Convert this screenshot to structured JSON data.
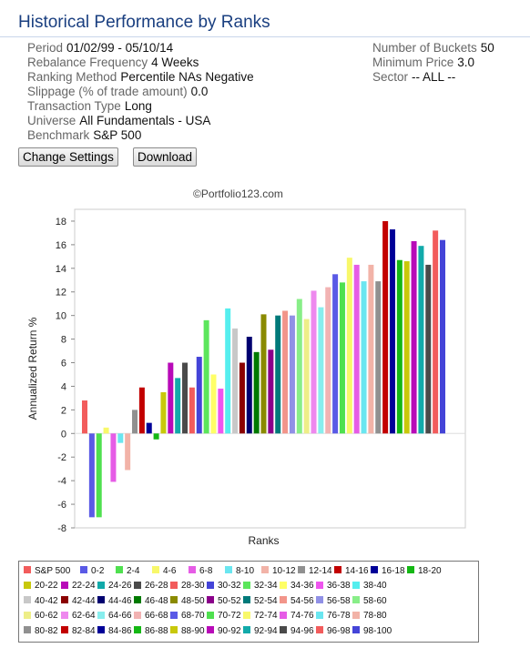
{
  "page": {
    "title": "Historical Performance by Ranks"
  },
  "params_left": [
    {
      "label": "Period",
      "value": "01/02/99 - 05/10/14"
    },
    {
      "label": "Rebalance Frequency",
      "value": "4 Weeks"
    },
    {
      "label": "Ranking Method",
      "value": "Percentile NAs Negative"
    },
    {
      "label": "Slippage (% of trade amount)",
      "value": "0.0"
    },
    {
      "label": "Transaction Type",
      "value": "Long"
    },
    {
      "label": "Universe",
      "value": "All Fundamentals - USA"
    },
    {
      "label": "Benchmark",
      "value": "S&P 500"
    }
  ],
  "params_right": [
    {
      "label": "Number of Buckets",
      "value": "50"
    },
    {
      "label": "Minimum Price",
      "value": "3.0"
    },
    {
      "label": "Sector",
      "value": "-- ALL --"
    }
  ],
  "buttons": {
    "change_settings": "Change Settings",
    "download": "Download"
  },
  "watermark": "©Portfolio123.com",
  "chart_data": {
    "type": "bar",
    "ylabel": "Annualized Return %",
    "xlabel": "Ranks",
    "ylim": [
      -8,
      19
    ],
    "yticks": [
      -8,
      -6,
      -4,
      -2,
      0,
      2,
      4,
      6,
      8,
      10,
      12,
      14,
      16,
      18
    ],
    "grid": false,
    "legend": "bottom",
    "categories": [
      "S&P 500",
      "0-2",
      "2-4",
      "4-6",
      "6-8",
      "8-10",
      "10-12",
      "12-14",
      "14-16",
      "16-18",
      "18-20",
      "20-22",
      "22-24",
      "24-26",
      "26-28",
      "28-30",
      "30-32",
      "32-34",
      "34-36",
      "36-38",
      "38-40",
      "40-42",
      "42-44",
      "44-46",
      "46-48",
      "48-50",
      "50-52",
      "52-54",
      "54-56",
      "56-58",
      "58-60",
      "60-62",
      "62-64",
      "64-66",
      "66-68",
      "68-70",
      "70-72",
      "72-74",
      "74-76",
      "76-78",
      "78-80",
      "80-82",
      "82-84",
      "84-86",
      "86-88",
      "88-90",
      "90-92",
      "92-94",
      "94-96",
      "96-98",
      "98-100"
    ],
    "values": [
      2.8,
      -7.1,
      -7.1,
      0.5,
      -4.1,
      -0.8,
      -3.1,
      2.0,
      3.9,
      0.9,
      -0.5,
      3.5,
      6.0,
      4.7,
      6.0,
      3.9,
      6.5,
      9.6,
      5.0,
      3.8,
      10.6,
      8.9,
      6.0,
      8.2,
      6.9,
      10.1,
      7.1,
      10.0,
      10.4,
      10.0,
      11.4,
      9.7,
      12.1,
      10.7,
      12.4,
      13.5,
      12.8,
      14.9,
      14.3,
      12.9,
      14.3,
      12.9,
      18.0,
      17.3,
      14.7,
      14.6,
      16.3,
      15.9,
      14.3,
      17.2,
      16.4
    ],
    "colors": [
      "#f25c5c",
      "#5a5ae6",
      "#4fe04f",
      "#f8f86a",
      "#e65ce6",
      "#6ae6f0",
      "#f2b3a8",
      "#909090",
      "#c20000",
      "#000098",
      "#14b814",
      "#c8c80a",
      "#b80ab8",
      "#12aaaa",
      "#4a4a4a",
      "#f25c5c",
      "#4444d8",
      "#5ce65c",
      "#ffff66",
      "#ee55ee",
      "#55eeee",
      "#c8c8c8",
      "#8a0000",
      "#000070",
      "#007a00",
      "#8a8a00",
      "#8a008a",
      "#007a7a",
      "#f2958a",
      "#9090e6",
      "#88ee88",
      "#eeee88",
      "#ee88ee",
      "#88eeee",
      "#f2b3b3",
      "#5a5ae6",
      "#4fe04f",
      "#f8f86a",
      "#e65ce6",
      "#6ae6f0",
      "#f2b3a8",
      "#909090",
      "#c20000",
      "#000098",
      "#14b814",
      "#c8c80a",
      "#b80ab8",
      "#12aaaa",
      "#4a4a4a",
      "#f25c5c",
      "#4444d8"
    ]
  }
}
